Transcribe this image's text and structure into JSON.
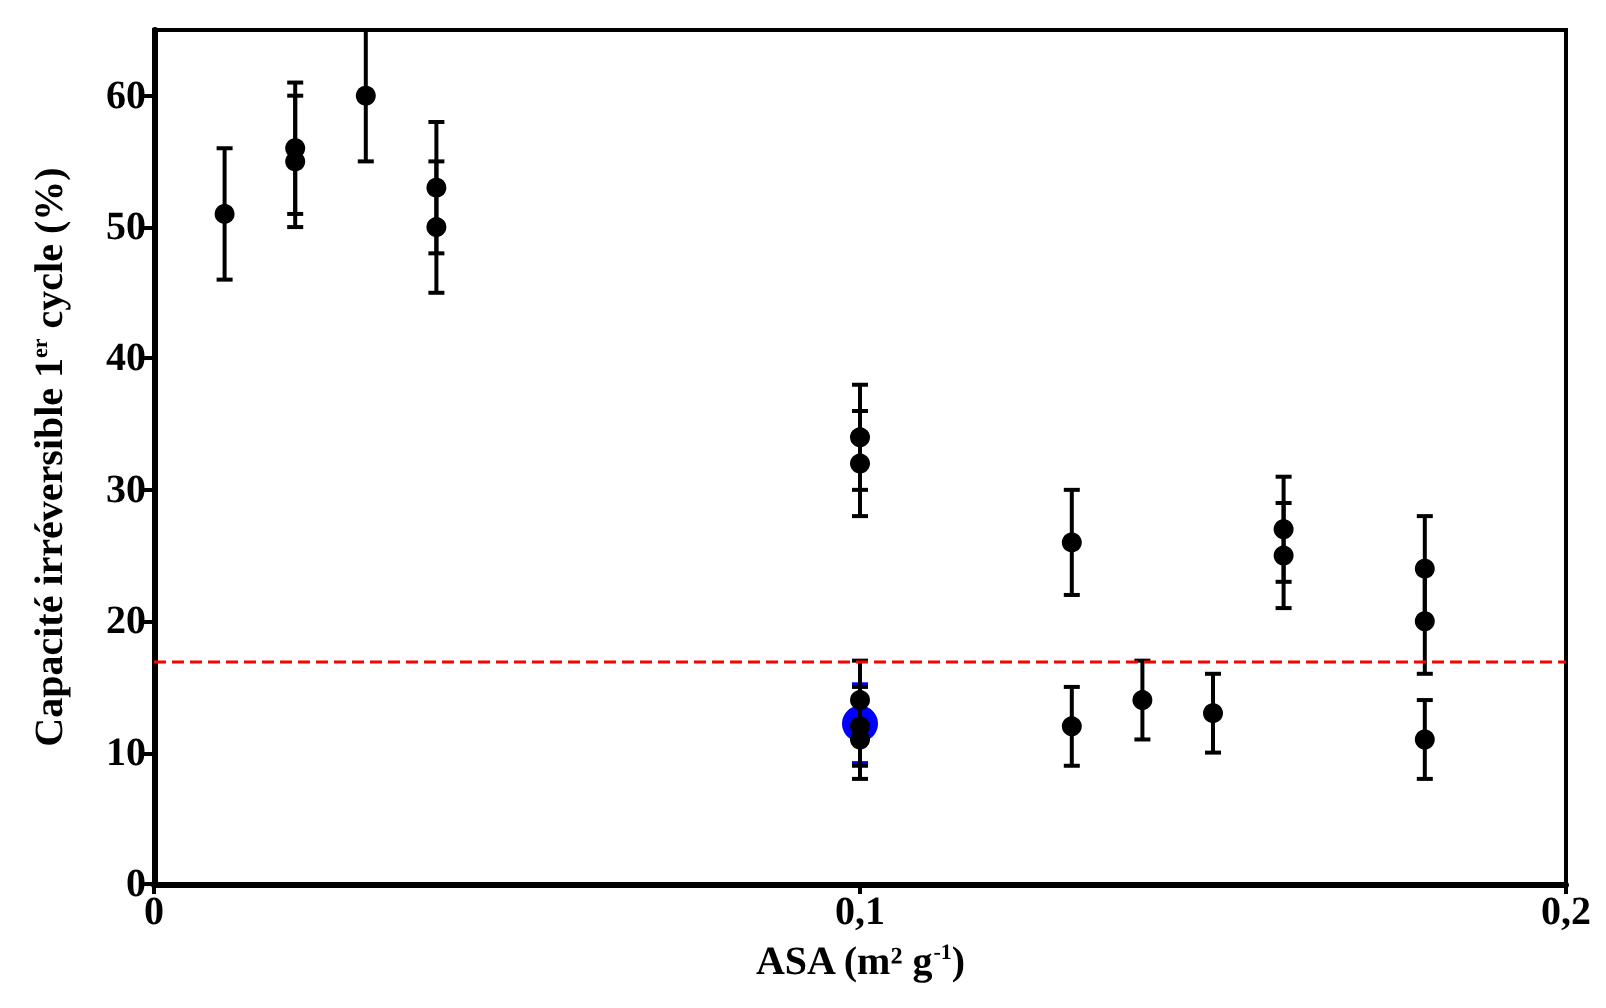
{
  "chart_data": {
    "type": "scatter",
    "xlabel": "ASA (m² g$^{-1}$)",
    "ylabel": "Capacité irréversible 1$^{er}$ cycle (%)",
    "xlim": [
      0,
      0.2
    ],
    "xticks": [
      0,
      {
        "value": 0.1,
        "label": "0,1"
      },
      {
        "value": 0.2,
        "label": "0,2"
      }
    ],
    "ylim": [
      0,
      65
    ],
    "yticks": [
      0,
      10,
      20,
      30,
      40,
      50,
      60
    ],
    "grid": false,
    "marker": "circle",
    "ref_lines": [
      {
        "axis": "y",
        "value": 17,
        "color": "#ff0000",
        "line_style": "dashed"
      }
    ],
    "series": [
      {
        "color": "#0000ff",
        "x": [
          0.1
        ],
        "values": [
          12.2
        ],
        "errors": [
          3
        ]
      },
      {
        "color": "#000000",
        "x": [
          0.01,
          0.02,
          0.02,
          0.03,
          0.04,
          0.04,
          0.1,
          0.1,
          0.1,
          0.1,
          0.1,
          0.13,
          0.13,
          0.14,
          0.15,
          0.16,
          0.16,
          0.18,
          0.18,
          0.18
        ],
        "values": [
          51,
          56,
          55,
          60,
          53,
          50,
          34,
          32,
          14,
          12,
          11,
          26,
          12,
          14,
          13,
          27,
          25,
          24,
          20,
          11
        ],
        "errors": [
          5,
          5,
          5,
          5,
          5,
          5,
          4,
          4,
          3,
          3,
          3,
          4,
          3,
          3,
          3,
          4,
          4,
          4,
          4,
          3
        ]
      }
    ]
  }
}
